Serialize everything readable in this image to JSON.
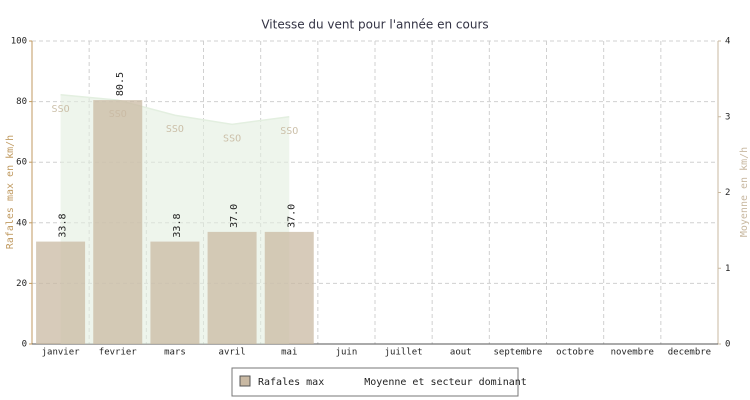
{
  "chart_data": {
    "type": "bar",
    "title": "Vitesse du vent pour l'année en cours",
    "categories": [
      "janvier",
      "fevrier",
      "mars",
      "avril",
      "mai",
      "juin",
      "juillet",
      "aout",
      "septembre",
      "octobre",
      "novembre",
      "decembre"
    ],
    "series": [
      {
        "name": "Rafales max",
        "type": "bar",
        "color": "#c9b9a3",
        "values": [
          33.8,
          80.5,
          33.8,
          37.0,
          37.0,
          null,
          null,
          null,
          null,
          null,
          null,
          null
        ],
        "value_labels": [
          "33.8",
          "80.5",
          "33.8",
          "37.0",
          "37.0",
          null,
          null,
          null,
          null,
          null,
          null,
          null
        ]
      },
      {
        "name": "Moyenne et secteur dominant",
        "type": "area",
        "axis": "y2",
        "color": "#e3efe0",
        "values": [
          3.29,
          3.22,
          3.02,
          2.9,
          3.0,
          null,
          null,
          null,
          null,
          null,
          null,
          null
        ],
        "point_labels": [
          "SSO",
          "SSO",
          "SSO",
          "SSO",
          "SSO",
          null,
          null,
          null,
          null,
          null,
          null,
          null
        ]
      }
    ],
    "ylabel": "Rafales max en km/h",
    "y2label": "Moyenne en km/h",
    "ylim": [
      0,
      100
    ],
    "yticks": [
      0,
      20,
      40,
      60,
      80,
      100
    ],
    "y2lim": [
      0,
      4
    ],
    "y2ticks": [
      0,
      1,
      2,
      3,
      4
    ],
    "grid": true,
    "legend": "bottom"
  }
}
